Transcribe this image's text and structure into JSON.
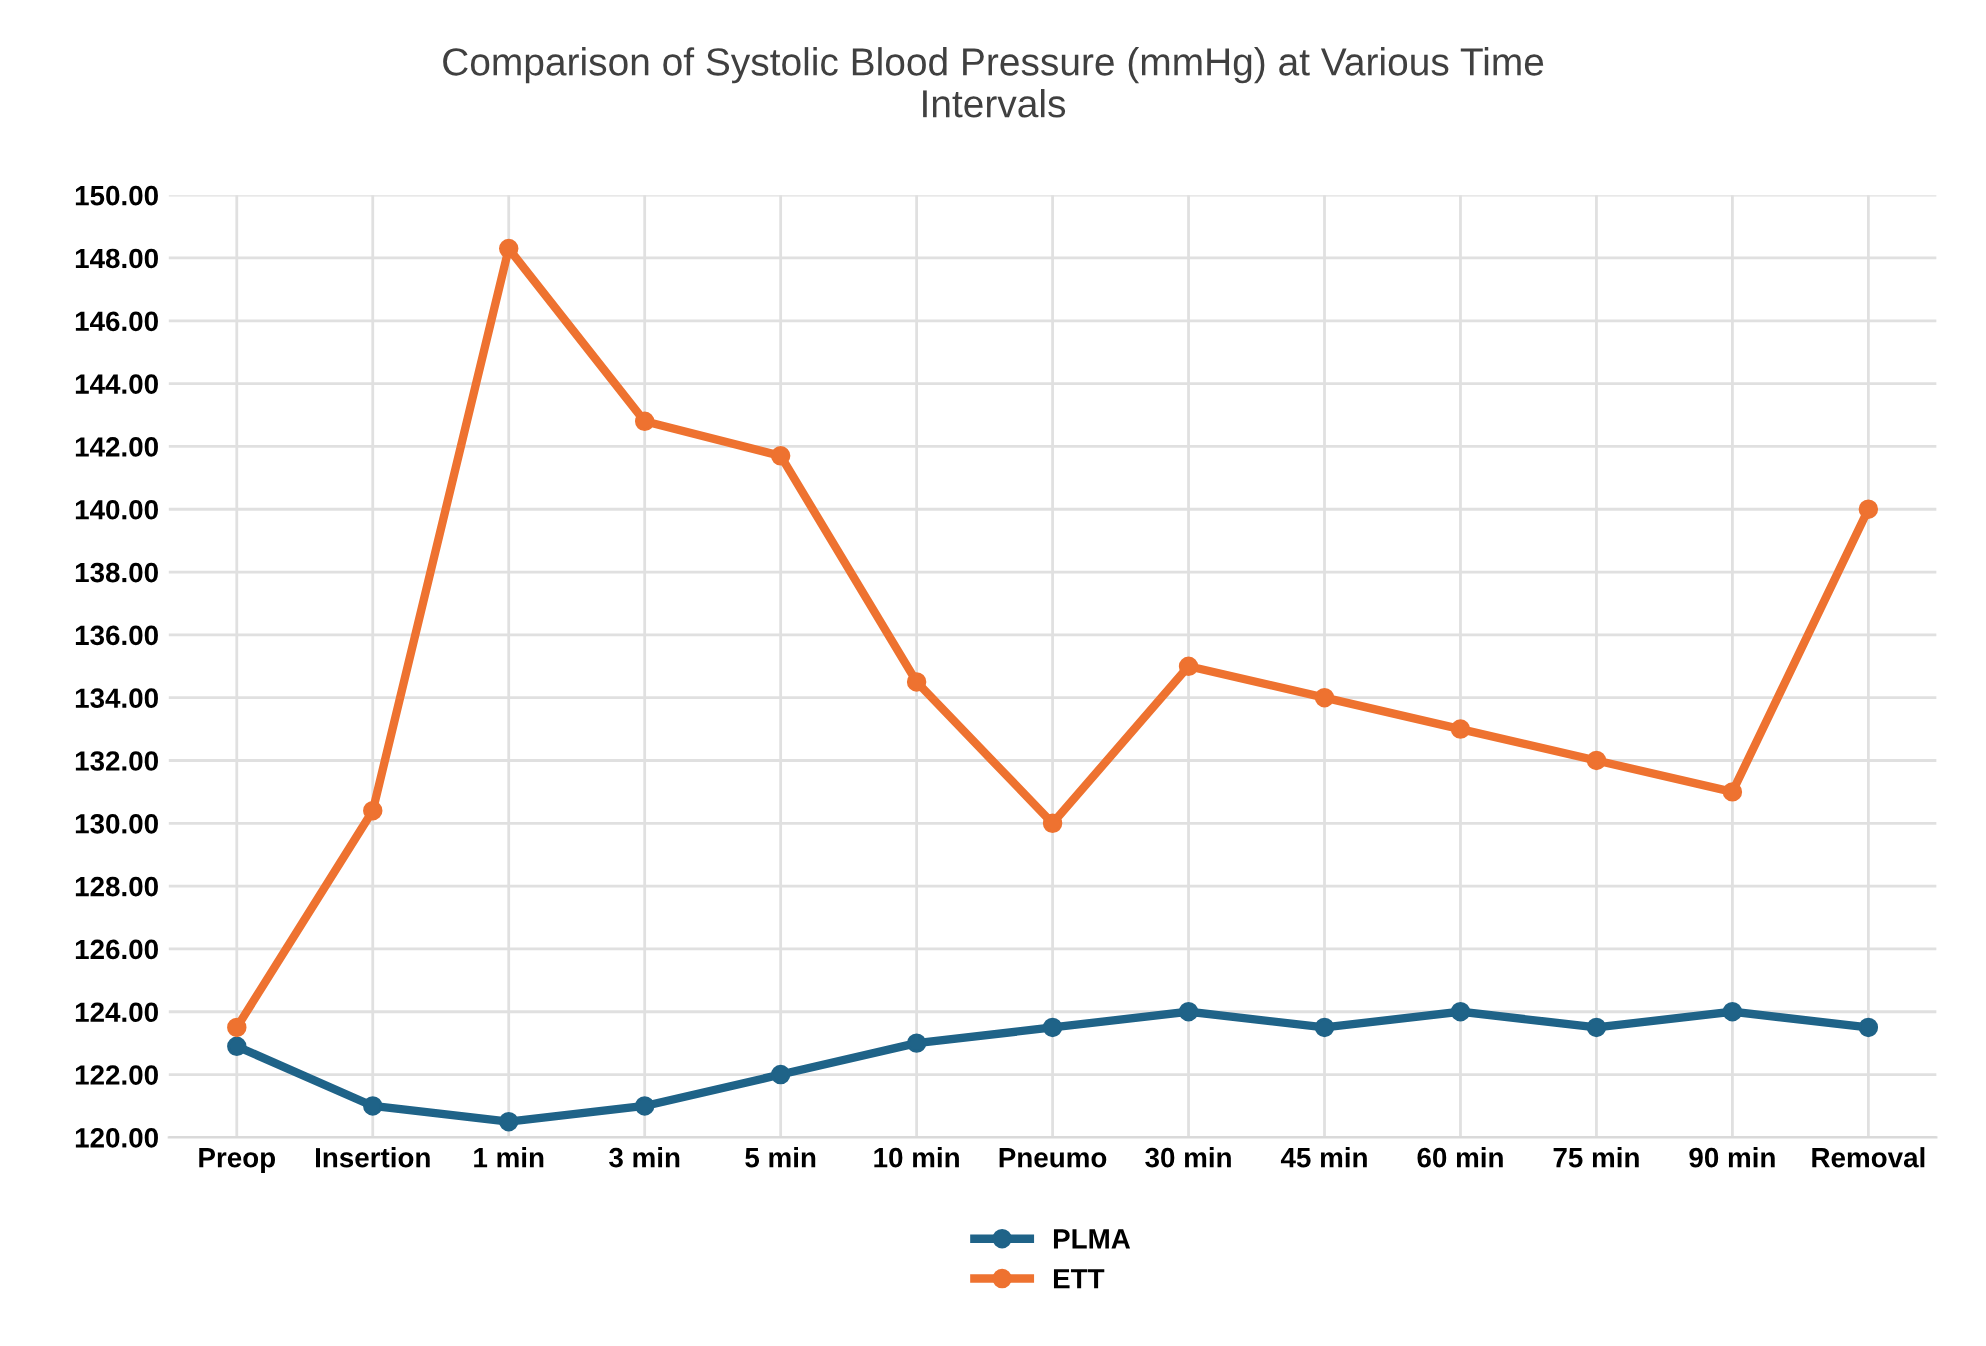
{
  "chart_data": {
    "type": "line",
    "title": "Comparison of Systolic Blood Pressure (mmHg) at Various Time\nIntervals",
    "categories": [
      "Preop",
      "Insertion",
      "1 min",
      "3 min",
      "5 min",
      "10 min",
      "Pneumo",
      "30 min",
      "45 min",
      "60 min",
      "75 min",
      "90 min",
      "Removal"
    ],
    "series": [
      {
        "name": "PLMA",
        "color": "#1f6388",
        "values": [
          122.9,
          121.0,
          120.5,
          121.0,
          122.0,
          123.0,
          123.5,
          124.0,
          123.5,
          124.0,
          123.5,
          124.0,
          123.5
        ]
      },
      {
        "name": "ETT",
        "color": "#ee7230",
        "values": [
          123.5,
          130.4,
          148.3,
          142.8,
          141.7,
          134.5,
          130.0,
          135.0,
          134.0,
          133.0,
          132.0,
          131.0,
          140.0
        ]
      }
    ],
    "ylim": [
      120,
      150
    ],
    "yticks": [
      {
        "value": 120,
        "label": "120.00"
      },
      {
        "value": 122,
        "label": "122.00"
      },
      {
        "value": 124,
        "label": "124.00"
      },
      {
        "value": 126,
        "label": "126.00"
      },
      {
        "value": 128,
        "label": "128.00"
      },
      {
        "value": 130,
        "label": "130.00"
      },
      {
        "value": 132,
        "label": "132.00"
      },
      {
        "value": 134,
        "label": "134.00"
      },
      {
        "value": 136,
        "label": "136.00"
      },
      {
        "value": 138,
        "label": "138.00"
      },
      {
        "value": 140,
        "label": "140.00"
      },
      {
        "value": 142,
        "label": "142.00"
      },
      {
        "value": 144,
        "label": "144.00"
      },
      {
        "value": 146,
        "label": "146.00"
      },
      {
        "value": 148,
        "label": "148.00"
      },
      {
        "value": 150,
        "label": "150.00"
      }
    ],
    "grid": true,
    "legend": "bottom",
    "marker": "circle",
    "line_style": "solid"
  }
}
